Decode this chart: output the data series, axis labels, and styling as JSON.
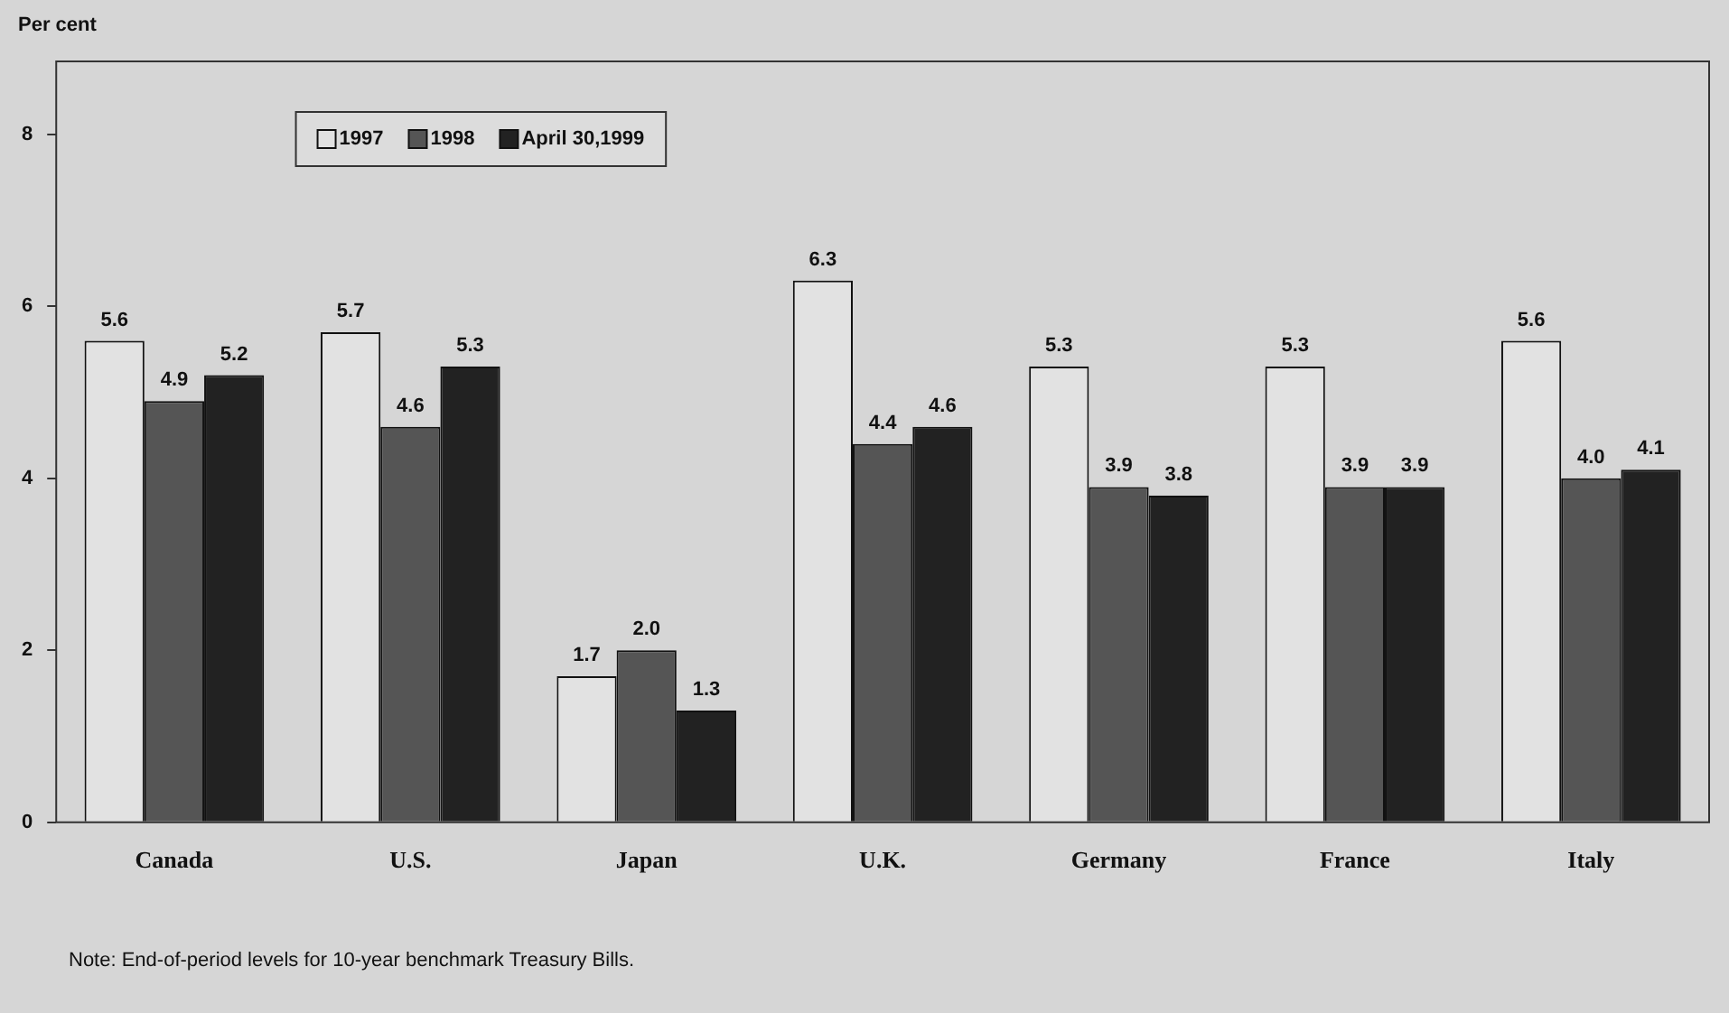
{
  "chart_data": {
    "type": "bar",
    "ylabel": "Per cent",
    "categories": [
      "Canada",
      "U.S.",
      "Japan",
      "U.K.",
      "Germany",
      "France",
      "Italy"
    ],
    "series": [
      {
        "name": "1997",
        "color": "#e2e2e2",
        "values": [
          5.6,
          5.7,
          1.7,
          6.3,
          5.3,
          5.3,
          5.6
        ],
        "value_labels": [
          "5.6",
          "5.7",
          "1.7",
          "6.3",
          "5.3",
          "5.3",
          "5.6"
        ]
      },
      {
        "name": "1998",
        "color": "#555555",
        "values": [
          4.9,
          4.6,
          2.0,
          4.4,
          3.9,
          3.9,
          4.0
        ],
        "value_labels": [
          "4.9",
          "4.6",
          "2.0",
          "4.4",
          "3.9",
          "3.9",
          "4.0"
        ]
      },
      {
        "name": "April 30,1999",
        "color": "#222222",
        "values": [
          5.2,
          5.3,
          1.3,
          4.6,
          3.8,
          3.9,
          4.1
        ],
        "value_labels": [
          "5.2",
          "5.3",
          "1.3",
          "4.6",
          "3.8",
          "3.9",
          "4.1"
        ]
      }
    ],
    "ylim": [
      0,
      8.85
    ],
    "yticks": [
      0,
      2,
      4,
      6,
      8
    ],
    "grid": false,
    "legend": "top left",
    "annotations": [
      "Note: End-of-period levels for 10-year benchmark Treasury Bills."
    ]
  }
}
